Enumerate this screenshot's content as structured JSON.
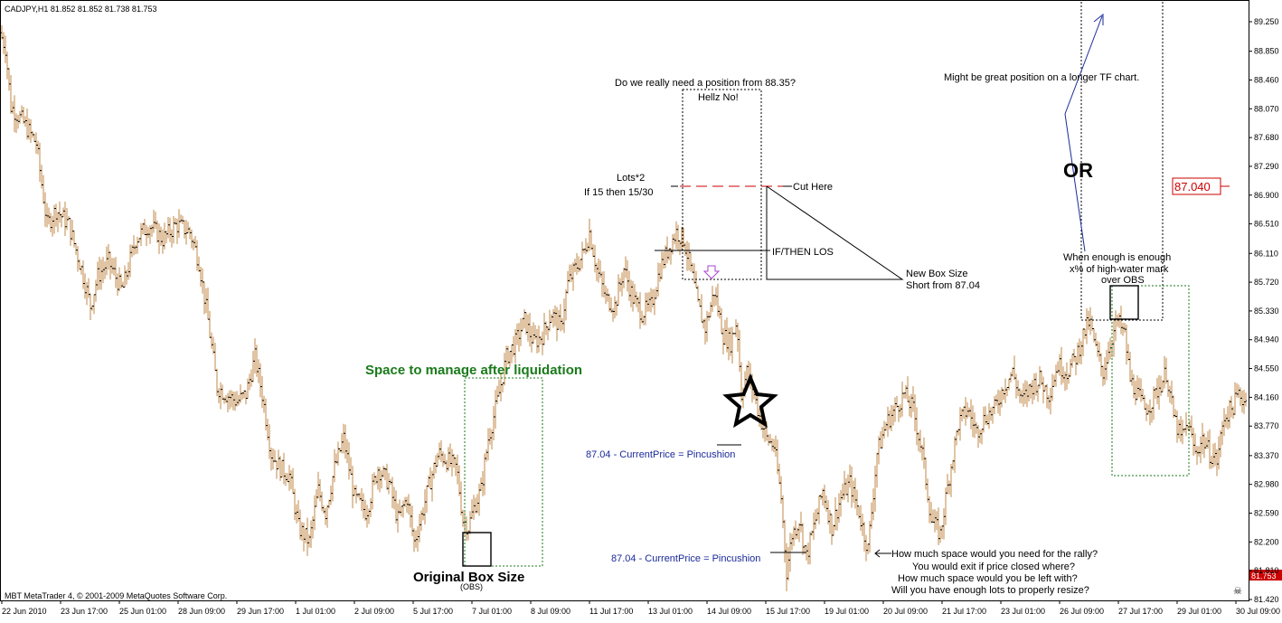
{
  "header": {
    "symbol_line": "CADJPY,H1  81.852 81.852 81.738 81.753"
  },
  "footer": {
    "copyright": "MBT MetaTrader 4, © 2001-2009 MetaQuotes Software Corp."
  },
  "chart_data": {
    "type": "candlestick-bars",
    "symbol": "CADJPY",
    "timeframe": "H1",
    "ohlc_last": {
      "open": 81.852,
      "high": 81.852,
      "low": 81.738,
      "close": 81.753
    },
    "y_axis": {
      "ticks": [
        89.25,
        88.85,
        88.46,
        88.07,
        87.68,
        87.29,
        86.9,
        86.51,
        86.11,
        85.72,
        85.33,
        84.94,
        84.55,
        84.16,
        83.77,
        83.37,
        82.98,
        82.59,
        82.2,
        81.81,
        81.42
      ],
      "tick_labels": [
        "89.250",
        "88.850",
        "88.460",
        "88.070",
        "87.680",
        "87.290",
        "86.900",
        "86.510",
        "86.110",
        "85.720",
        "85.330",
        "84.940",
        "84.550",
        "84.160",
        "83.770",
        "83.370",
        "82.980",
        "82.590",
        "82.200",
        "81.810",
        "81.420"
      ],
      "range": [
        81.3,
        89.4
      ]
    },
    "x_axis": {
      "tick_labels": [
        "22 Jun 2010",
        "23 Jun 17:00",
        "25 Jun 01:00",
        "28 Jun 09:00",
        "29 Jun 17:00",
        "1 Jul 01:00",
        "2 Jul 09:00",
        "5 Jul 17:00",
        "7 Jul 01:00",
        "8 Jul 09:00",
        "11 Jul 17:00",
        "13 Jul 01:00",
        "14 Jul 09:00",
        "15 Jul 17:00",
        "19 Jul 01:00",
        "20 Jul 09:00",
        "21 Jul 17:00",
        "23 Jul 01:00",
        "26 Jul 09:00",
        "27 Jul 17:00",
        "29 Jul 01:00",
        "30 Jul 09:00"
      ]
    },
    "price_path": [
      [
        0,
        89.1
      ],
      [
        6,
        88.9
      ],
      [
        12,
        88.1
      ],
      [
        25,
        87.9
      ],
      [
        40,
        87.6
      ],
      [
        52,
        86.5
      ],
      [
        62,
        86.7
      ],
      [
        76,
        86.5
      ],
      [
        90,
        85.9
      ],
      [
        100,
        85.4
      ],
      [
        108,
        85.8
      ],
      [
        120,
        86.0
      ],
      [
        135,
        85.6
      ],
      [
        150,
        86.3
      ],
      [
        165,
        86.5
      ],
      [
        180,
        86.3
      ],
      [
        195,
        86.5
      ],
      [
        210,
        86.4
      ],
      [
        220,
        86.0
      ],
      [
        230,
        85.2
      ],
      [
        240,
        84.3
      ],
      [
        250,
        84.2
      ],
      [
        262,
        84.1
      ],
      [
        272,
        84.2
      ],
      [
        282,
        84.7
      ],
      [
        290,
        84.2
      ],
      [
        300,
        83.4
      ],
      [
        310,
        83.2
      ],
      [
        320,
        83.1
      ],
      [
        330,
        82.4
      ],
      [
        342,
        82.2
      ],
      [
        352,
        82.9
      ],
      [
        360,
        82.6
      ],
      [
        370,
        83.2
      ],
      [
        380,
        83.6
      ],
      [
        392,
        82.8
      ],
      [
        405,
        82.6
      ],
      [
        418,
        83.2
      ],
      [
        430,
        83.0
      ],
      [
        440,
        82.5
      ],
      [
        450,
        82.8
      ],
      [
        458,
        82.2
      ],
      [
        465,
        82.5
      ],
      [
        475,
        83.0
      ],
      [
        485,
        83.4
      ],
      [
        495,
        83.3
      ],
      [
        505,
        83.2
      ],
      [
        512,
        82.5
      ],
      [
        518,
        82.4
      ],
      [
        525,
        82.7
      ],
      [
        532,
        82.9
      ],
      [
        540,
        83.6
      ],
      [
        550,
        84.1
      ],
      [
        560,
        84.7
      ],
      [
        570,
        84.9
      ],
      [
        580,
        85.2
      ],
      [
        590,
        84.9
      ],
      [
        600,
        85.0
      ],
      [
        610,
        85.3
      ],
      [
        620,
        85.1
      ],
      [
        628,
        85.7
      ],
      [
        636,
        85.9
      ],
      [
        645,
        86.1
      ],
      [
        652,
        86.4
      ],
      [
        660,
        85.9
      ],
      [
        670,
        85.5
      ],
      [
        680,
        85.4
      ],
      [
        690,
        85.9
      ],
      [
        700,
        85.5
      ],
      [
        710,
        85.3
      ],
      [
        720,
        85.4
      ],
      [
        730,
        85.9
      ],
      [
        740,
        86.2
      ],
      [
        748,
        86.4
      ],
      [
        756,
        86.3
      ],
      [
        764,
        85.9
      ],
      [
        772,
        85.4
      ],
      [
        780,
        85.1
      ],
      [
        790,
        85.6
      ],
      [
        800,
        85.0
      ],
      [
        808,
        84.9
      ],
      [
        815,
        85.2
      ],
      [
        820,
        84.2
      ],
      [
        826,
        84.5
      ],
      [
        832,
        84.3
      ],
      [
        840,
        83.9
      ],
      [
        848,
        83.6
      ],
      [
        856,
        83.5
      ],
      [
        864,
        82.8
      ],
      [
        870,
        81.8
      ],
      [
        876,
        82.3
      ],
      [
        884,
        82.5
      ],
      [
        892,
        82.0
      ],
      [
        900,
        82.4
      ],
      [
        910,
        82.9
      ],
      [
        920,
        82.4
      ],
      [
        930,
        82.8
      ],
      [
        940,
        83.0
      ],
      [
        950,
        82.6
      ],
      [
        960,
        82.1
      ],
      [
        970,
        83.4
      ],
      [
        980,
        83.8
      ],
      [
        990,
        84.0
      ],
      [
        1000,
        84.2
      ],
      [
        1010,
        84.0
      ],
      [
        1020,
        83.4
      ],
      [
        1030,
        82.5
      ],
      [
        1040,
        82.3
      ],
      [
        1050,
        83.1
      ],
      [
        1060,
        83.8
      ],
      [
        1070,
        84.0
      ],
      [
        1080,
        83.7
      ],
      [
        1090,
        83.9
      ],
      [
        1100,
        84.0
      ],
      [
        1110,
        84.3
      ],
      [
        1120,
        84.5
      ],
      [
        1130,
        84.1
      ],
      [
        1140,
        84.3
      ],
      [
        1150,
        84.4
      ],
      [
        1160,
        84.2
      ],
      [
        1170,
        84.6
      ],
      [
        1180,
        84.5
      ],
      [
        1190,
        84.7
      ],
      [
        1198,
        85.0
      ],
      [
        1205,
        85.2
      ],
      [
        1212,
        84.8
      ],
      [
        1220,
        84.5
      ],
      [
        1228,
        84.9
      ],
      [
        1236,
        85.2
      ],
      [
        1244,
        85.0
      ],
      [
        1250,
        84.4
      ],
      [
        1258,
        84.2
      ],
      [
        1266,
        84.0
      ],
      [
        1274,
        84.1
      ],
      [
        1282,
        84.3
      ],
      [
        1290,
        84.5
      ],
      [
        1298,
        83.9
      ],
      [
        1306,
        83.6
      ],
      [
        1314,
        83.8
      ],
      [
        1322,
        83.4
      ],
      [
        1330,
        83.6
      ],
      [
        1338,
        83.4
      ],
      [
        1346,
        83.3
      ],
      [
        1354,
        83.9
      ],
      [
        1362,
        84.0
      ],
      [
        1370,
        84.2
      ],
      [
        1378,
        84.1
      ]
    ],
    "price_label": {
      "value": "87.040"
    },
    "current_price_label": {
      "value": "81.753"
    },
    "annotations": {
      "space_manage": "Space to manage after liquidation",
      "original_box": "Original Box Size",
      "obs": "(OBS)",
      "question_position": "Do we really need a position from 88.35?",
      "hellz_no": "Hellz No!",
      "lots_line1": "Lots*2",
      "lots_line2": "If 15 then 15/30",
      "cut_here": "Cut Here",
      "if_then_los": "IF/THEN LOS",
      "new_box_line1": "New Box Size",
      "new_box_line2": "Short from 87.04",
      "pincushion_1": "87.04 - CurrentPrice = Pincushion",
      "pincushion_2": "87.04 - CurrentPrice = Pincushion",
      "might_be_great": "Might be great position on a longer TF chart.",
      "or_label": "OR",
      "when_enough_1": "When enough is enough",
      "when_enough_2": "x% of high-water mark",
      "when_enough_3": "over OBS",
      "rally_q1": "How much space would you need for the rally?",
      "rally_q2": "You would exit if price closed where?",
      "rally_q3": "How much space would you be left with?",
      "rally_q4": "Will you have enough lots to properly resize?"
    },
    "colors": {
      "bars": "#c08848",
      "axis": "#000000",
      "green_text": "#1a7a1a",
      "blue_text": "#1a2a99",
      "red": "#cc0000",
      "purple_arrow": "#aa44cc"
    }
  }
}
